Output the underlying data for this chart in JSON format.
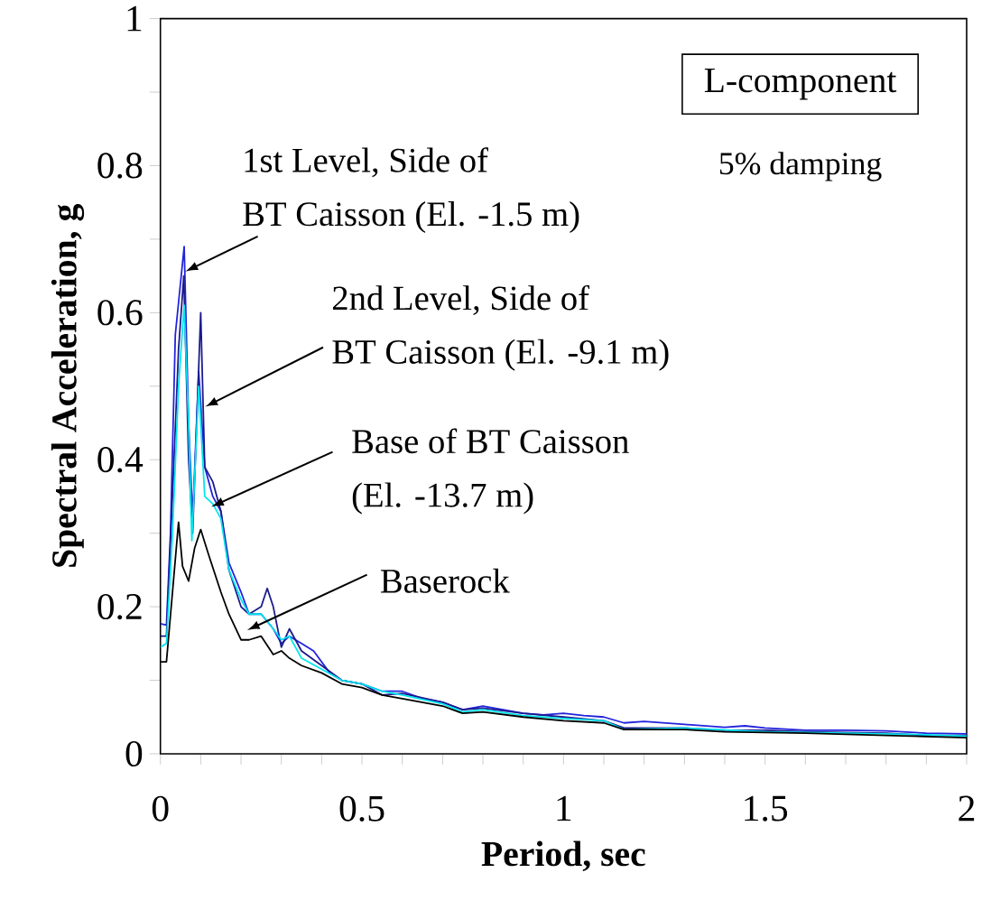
{
  "chart_data": {
    "type": "line",
    "xlabel": "Period, sec",
    "ylabel": "Spectral Acceleration, g",
    "annotations": [
      "L-component",
      "5% damping",
      {
        "text": "1st Level, Side of BT Caisson (El. -1.5 m)",
        "x": 0.062,
        "y": 0.656
      },
      {
        "text": "2nd Level, Side of BT Caisson (El. -9.1 m)",
        "x": 0.111,
        "y": 0.472
      },
      {
        "text": "Base of BT Caisson (El. -13.7 m)",
        "x": 0.126,
        "y": 0.336
      },
      {
        "text": "Baserock",
        "x": 0.215,
        "y": 0.168
      }
    ],
    "xlim": [
      0,
      2
    ],
    "ylim": [
      0,
      1
    ],
    "xticks": [
      0,
      {
        "value": 0.1,
        "label": null
      },
      {
        "value": 0.2,
        "label": null
      },
      {
        "value": 0.3,
        "label": null
      },
      {
        "value": 0.4,
        "label": null
      },
      0.5,
      {
        "value": 0.6,
        "label": null
      },
      {
        "value": 0.7,
        "label": null
      },
      {
        "value": 0.8,
        "label": null
      },
      {
        "value": 0.9,
        "label": null
      },
      1,
      {
        "value": 1.1,
        "label": null
      },
      {
        "value": 1.2,
        "label": null
      },
      {
        "value": 1.3,
        "label": null
      },
      {
        "value": 1.4,
        "label": null
      },
      1.5,
      {
        "value": 1.6,
        "label": null
      },
      {
        "value": 1.7,
        "label": null
      },
      {
        "value": 1.8,
        "label": null
      },
      {
        "value": 1.9,
        "label": null
      },
      2
    ],
    "yticks": [
      0,
      {
        "value": 0.1,
        "label": null
      },
      0.2,
      {
        "value": 0.3,
        "label": null
      },
      0.4,
      {
        "value": 0.5,
        "label": null
      },
      0.6,
      {
        "value": 0.7,
        "label": null
      },
      0.8,
      {
        "value": 0.9,
        "label": null
      },
      1
    ],
    "series": [
      {
        "color": "#2222dd",
        "x": [
          0,
          0.015,
          0.025,
          0.037,
          0.059,
          0.07,
          0.08,
          0.095,
          0.11,
          0.13,
          0.15,
          0.17,
          0.2,
          0.22,
          0.25,
          0.28,
          0.3,
          0.32,
          0.35,
          0.38,
          0.42,
          0.45,
          0.5,
          0.55,
          0.6,
          0.65,
          0.7,
          0.75,
          0.8,
          0.85,
          0.9,
          0.95,
          1.0,
          1.05,
          1.1,
          1.15,
          1.2,
          1.3,
          1.4,
          1.45,
          1.5,
          1.6,
          1.7,
          1.8,
          1.9,
          2.0
        ],
        "values": [
          0.177,
          0.175,
          0.3,
          0.57,
          0.69,
          0.45,
          0.32,
          0.52,
          0.39,
          0.35,
          0.33,
          0.26,
          0.22,
          0.19,
          0.19,
          0.17,
          0.15,
          0.16,
          0.15,
          0.14,
          0.11,
          0.1,
          0.095,
          0.085,
          0.085,
          0.075,
          0.07,
          0.06,
          0.065,
          0.06,
          0.055,
          0.053,
          0.055,
          0.052,
          0.05,
          0.042,
          0.044,
          0.04,
          0.036,
          0.038,
          0.035,
          0.032,
          0.032,
          0.031,
          0.028,
          0.027
        ]
      },
      {
        "color": "#1a1a8c",
        "x": [
          0,
          0.015,
          0.03,
          0.045,
          0.058,
          0.07,
          0.08,
          0.1,
          0.11,
          0.13,
          0.15,
          0.17,
          0.2,
          0.22,
          0.25,
          0.265,
          0.28,
          0.3,
          0.32,
          0.35,
          0.4,
          0.45,
          0.5,
          0.55,
          0.6,
          0.7,
          0.75,
          0.8,
          0.9,
          1.0,
          1.1,
          1.15,
          1.3,
          1.4,
          1.5,
          1.6,
          1.8,
          1.9,
          2.0
        ],
        "values": [
          0.16,
          0.16,
          0.35,
          0.55,
          0.65,
          0.4,
          0.3,
          0.6,
          0.39,
          0.37,
          0.33,
          0.25,
          0.2,
          0.19,
          0.2,
          0.225,
          0.2,
          0.145,
          0.17,
          0.14,
          0.12,
          0.1,
          0.095,
          0.08,
          0.082,
          0.07,
          0.06,
          0.062,
          0.055,
          0.05,
          0.045,
          0.035,
          0.035,
          0.032,
          0.032,
          0.03,
          0.028,
          0.025,
          0.025
        ]
      },
      {
        "color": "#00e5ee",
        "x": [
          0,
          0.015,
          0.03,
          0.045,
          0.059,
          0.07,
          0.078,
          0.095,
          0.11,
          0.13,
          0.15,
          0.17,
          0.2,
          0.22,
          0.25,
          0.28,
          0.3,
          0.32,
          0.35,
          0.4,
          0.45,
          0.5,
          0.55,
          0.6,
          0.7,
          0.75,
          0.8,
          0.9,
          1.0,
          1.1,
          1.15,
          1.3,
          1.5,
          1.7,
          1.9,
          2.0
        ],
        "values": [
          0.145,
          0.15,
          0.3,
          0.5,
          0.61,
          0.45,
          0.29,
          0.5,
          0.35,
          0.34,
          0.32,
          0.25,
          0.21,
          0.19,
          0.19,
          0.17,
          0.155,
          0.16,
          0.13,
          0.115,
          0.1,
          0.095,
          0.085,
          0.08,
          0.068,
          0.057,
          0.06,
          0.052,
          0.048,
          0.045,
          0.033,
          0.035,
          0.03,
          0.028,
          0.026,
          0.024
        ]
      },
      {
        "color": "#000000",
        "x": [
          0,
          0.015,
          0.03,
          0.045,
          0.055,
          0.07,
          0.085,
          0.1,
          0.12,
          0.15,
          0.17,
          0.2,
          0.22,
          0.25,
          0.28,
          0.3,
          0.32,
          0.35,
          0.4,
          0.45,
          0.5,
          0.55,
          0.6,
          0.7,
          0.75,
          0.8,
          0.9,
          1.0,
          1.1,
          1.15,
          1.3,
          1.4,
          1.6,
          1.8,
          2.0
        ],
        "values": [
          0.125,
          0.125,
          0.22,
          0.315,
          0.255,
          0.235,
          0.28,
          0.305,
          0.27,
          0.22,
          0.19,
          0.155,
          0.155,
          0.16,
          0.135,
          0.14,
          0.13,
          0.12,
          0.11,
          0.095,
          0.09,
          0.08,
          0.075,
          0.065,
          0.055,
          0.057,
          0.05,
          0.045,
          0.042,
          0.033,
          0.033,
          0.03,
          0.028,
          0.025,
          0.022
        ]
      }
    ]
  }
}
